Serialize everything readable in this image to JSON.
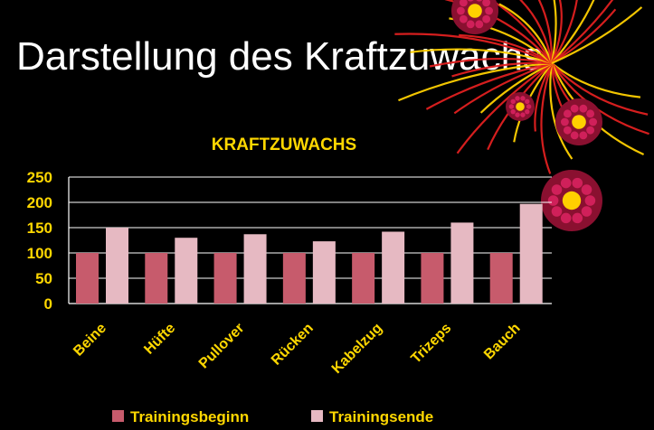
{
  "slide": {
    "title": "Darstellung des Kraftzuwachs"
  },
  "colors": {
    "background": "#000000",
    "title_text": "#ffffff",
    "chart_text": "#ffd700",
    "series_begin": "#c75b6c",
    "series_end": "#e6b9c2",
    "firework_red": "#e02020",
    "firework_yellow": "#ffd000"
  },
  "chart_data": {
    "type": "bar",
    "title": "KRAFTZUWACHS",
    "categories": [
      "Beine",
      "Hüfte",
      "Pullover",
      "Rücken",
      "Kabelzug",
      "Trizeps",
      "Bauch"
    ],
    "series": [
      {
        "name": "Trainingsbeginn",
        "values": [
          100,
          100,
          100,
          100,
          100,
          100,
          100
        ]
      },
      {
        "name": "Trainingsende",
        "values": [
          150,
          130,
          137,
          123,
          142,
          160,
          197
        ]
      }
    ],
    "yticks": [
      0,
      50,
      100,
      150,
      200,
      250
    ],
    "ylim": [
      0,
      250
    ],
    "grid": true,
    "legend": "bottom"
  }
}
